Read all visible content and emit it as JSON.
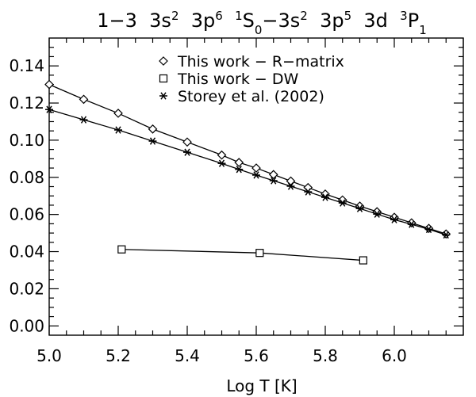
{
  "chart_data": {
    "type": "line",
    "title": {
      "segments": [
        {
          "text": "1−3  3s",
          "pos": "base"
        },
        {
          "text": "2",
          "pos": "sup"
        },
        {
          "text": "  3p",
          "pos": "base"
        },
        {
          "text": "6",
          "pos": "sup"
        },
        {
          "text": "  ",
          "pos": "base"
        },
        {
          "text": "1",
          "pos": "sup"
        },
        {
          "text": "S",
          "pos": "base"
        },
        {
          "text": "0",
          "pos": "sub"
        },
        {
          "text": "−3s",
          "pos": "base"
        },
        {
          "text": "2",
          "pos": "sup"
        },
        {
          "text": "  3p",
          "pos": "base"
        },
        {
          "text": "5",
          "pos": "sup"
        },
        {
          "text": "  3d  ",
          "pos": "base"
        },
        {
          "text": "3",
          "pos": "sup"
        },
        {
          "text": "P",
          "pos": "base"
        },
        {
          "text": "1",
          "pos": "sub"
        }
      ]
    },
    "xlabel": "Log T [K]",
    "ylabel": "",
    "xlim": [
      5.0,
      6.2
    ],
    "ylim": [
      -0.005,
      0.155
    ],
    "x_ticks": [
      "5.0",
      "5.2",
      "5.4",
      "5.6",
      "5.8",
      "6.0"
    ],
    "x_tick_values": [
      5.0,
      5.2,
      5.4,
      5.6,
      5.8,
      6.0
    ],
    "y_ticks": [
      "0.00",
      "0.02",
      "0.04",
      "0.06",
      "0.08",
      "0.10",
      "0.12",
      "0.14"
    ],
    "y_tick_values": [
      0.0,
      0.02,
      0.04,
      0.06,
      0.08,
      0.1,
      0.12,
      0.14
    ],
    "legend_position": "top-center",
    "grid": false,
    "series": [
      {
        "name": "This work − R−matrix",
        "marker": "diamond",
        "x": [
          5.0,
          5.1,
          5.2,
          5.3,
          5.4,
          5.5,
          5.55,
          5.6,
          5.65,
          5.7,
          5.75,
          5.8,
          5.85,
          5.9,
          5.95,
          6.0,
          6.05,
          6.1,
          6.15
        ],
        "y": [
          0.13,
          0.122,
          0.1145,
          0.106,
          0.099,
          0.092,
          0.088,
          0.085,
          0.0815,
          0.078,
          0.0745,
          0.071,
          0.0678,
          0.0645,
          0.0615,
          0.0585,
          0.0555,
          0.0525,
          0.0495
        ]
      },
      {
        "name": "This work − DW",
        "marker": "square",
        "x": [
          5.21,
          5.61,
          5.91
        ],
        "y": [
          0.0412,
          0.0393,
          0.0353
        ]
      },
      {
        "name": "Storey et al. (2002)",
        "marker": "asterisk",
        "x": [
          5.0,
          5.1,
          5.2,
          5.3,
          5.4,
          5.5,
          5.55,
          5.6,
          5.65,
          5.7,
          5.75,
          5.8,
          5.85,
          5.9,
          5.95,
          6.0,
          6.05,
          6.1,
          6.15
        ],
        "y": [
          0.1165,
          0.111,
          0.1055,
          0.0995,
          0.0935,
          0.0875,
          0.0843,
          0.0812,
          0.0782,
          0.0752,
          0.0722,
          0.0692,
          0.0662,
          0.0632,
          0.0602,
          0.0572,
          0.0547,
          0.052,
          0.049
        ]
      }
    ]
  }
}
